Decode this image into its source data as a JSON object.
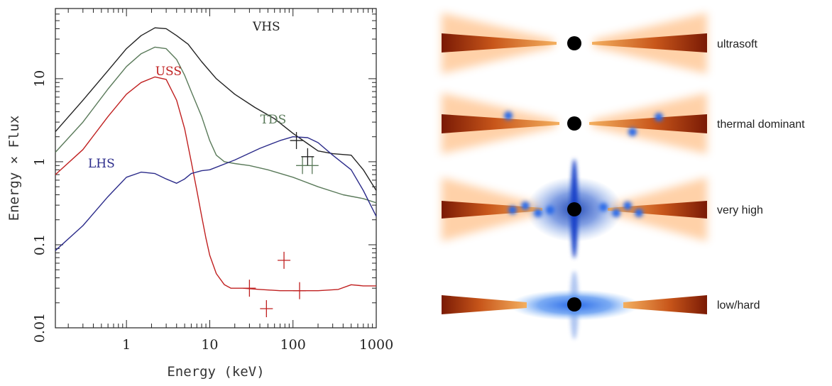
{
  "chart_data": {
    "type": "line",
    "xlabel": "Energy (keV)",
    "ylabel": "Energy × Flux",
    "x_scale": "log",
    "y_scale": "log",
    "xlim": [
      0.14,
      1000
    ],
    "ylim": [
      0.01,
      70
    ],
    "x_ticks": [
      {
        "value": 1,
        "label": "1"
      },
      {
        "value": 10,
        "label": "10"
      },
      {
        "value": 100,
        "label": "100"
      },
      {
        "value": 1000,
        "label": "1000"
      }
    ],
    "y_ticks": [
      {
        "value": 0.01,
        "label": "0.01"
      },
      {
        "value": 0.1,
        "label": "0.1"
      },
      {
        "value": 1,
        "label": "1"
      },
      {
        "value": 10,
        "label": "10"
      }
    ],
    "series": [
      {
        "name": "VHS",
        "color": "#222222",
        "x": [
          0.14,
          0.3,
          0.6,
          1,
          1.5,
          2.2,
          3,
          4,
          5.5,
          8,
          12,
          20,
          35,
          60,
          100,
          150,
          200,
          300,
          500,
          700,
          1000
        ],
        "y": [
          2.3,
          5.5,
          12.5,
          23,
          33,
          41,
          40,
          33,
          26,
          16,
          10,
          6.5,
          4.5,
          3.3,
          2.2,
          1.65,
          1.35,
          1.25,
          1.2,
          0.8,
          0.45
        ]
      },
      {
        "name": "TDS",
        "color": "#5a7a5a",
        "x": [
          0.14,
          0.3,
          0.6,
          1,
          1.5,
          2.2,
          3,
          4,
          5,
          6,
          8,
          10,
          12,
          15,
          20,
          30,
          50,
          100,
          200,
          400,
          700,
          1000
        ],
        "y": [
          1.3,
          3.0,
          7.5,
          14,
          20,
          24,
          23,
          17,
          11,
          7,
          3.5,
          1.8,
          1.2,
          1.0,
          0.95,
          0.9,
          0.8,
          0.65,
          0.5,
          0.4,
          0.36,
          0.32
        ]
      },
      {
        "name": "USS",
        "color": "#c02020",
        "x": [
          0.14,
          0.3,
          0.6,
          1,
          1.5,
          2.2,
          3,
          4,
          5,
          6,
          7,
          8,
          9,
          10,
          12,
          15,
          18,
          25,
          40,
          70,
          100,
          200,
          350,
          500,
          700,
          1000
        ],
        "y": [
          0.7,
          1.4,
          3.5,
          6.5,
          9,
          10.5,
          9.8,
          5.5,
          2.5,
          1.0,
          0.45,
          0.22,
          0.12,
          0.075,
          0.045,
          0.033,
          0.03,
          0.03,
          0.029,
          0.028,
          0.028,
          0.028,
          0.029,
          0.033,
          0.032,
          0.032
        ]
      },
      {
        "name": "LHS",
        "color": "#2b2b8a",
        "x": [
          0.14,
          0.3,
          0.6,
          1,
          1.5,
          2.2,
          3,
          4,
          5,
          6,
          8,
          10,
          20,
          40,
          70,
          100,
          150,
          200,
          300,
          500,
          700,
          1000
        ],
        "y": [
          0.085,
          0.17,
          0.38,
          0.65,
          0.75,
          0.72,
          0.62,
          0.55,
          0.62,
          0.72,
          0.78,
          0.8,
          1.05,
          1.45,
          1.8,
          2.0,
          1.95,
          1.7,
          1.2,
          0.8,
          0.45,
          0.22
        ]
      }
    ],
    "series_labels": [
      {
        "text": "VHS",
        "x": 48,
        "y": 38
      },
      {
        "text": "TDS",
        "x": 58,
        "y": 2.9
      },
      {
        "text": "USS",
        "x": 3.2,
        "y": 11
      },
      {
        "text": "LHS",
        "x": 0.5,
        "y": 0.85
      }
    ],
    "error_points": [
      {
        "series": "USS",
        "x": 30,
        "y": 0.03
      },
      {
        "series": "USS",
        "x": 48,
        "y": 0.017
      },
      {
        "series": "USS",
        "x": 78,
        "y": 0.065
      },
      {
        "series": "USS",
        "x": 120,
        "y": 0.028
      },
      {
        "series": "TDS",
        "x": 130,
        "y": 0.9
      },
      {
        "series": "TDS",
        "x": 170,
        "y": 0.9
      },
      {
        "series": "VHS",
        "x": 110,
        "y": 1.8
      },
      {
        "series": "VHS",
        "x": 150,
        "y": 1.15
      }
    ]
  },
  "states": {
    "labels": [
      "ultrasoft",
      "thermal dominant",
      "very high",
      "low/hard"
    ],
    "colors": {
      "disk_dark": "#7a1a05",
      "disk_light": "#f0a048",
      "glow": "#ff9a40",
      "corona": "#2060e0",
      "hole": "#000000"
    }
  }
}
